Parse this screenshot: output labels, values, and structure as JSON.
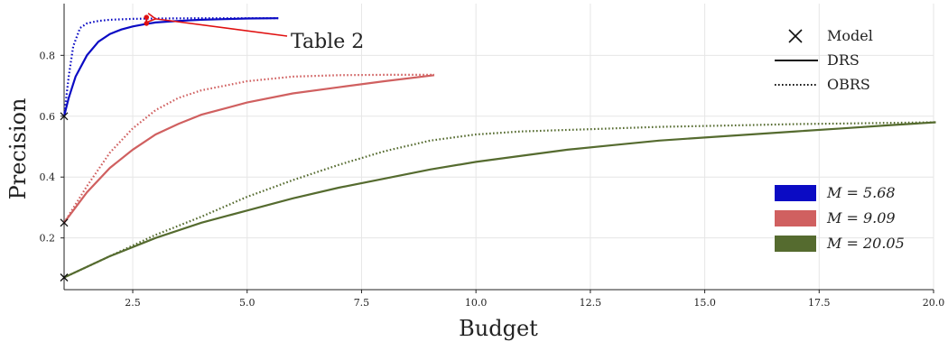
{
  "chart_data": {
    "type": "line",
    "xlabel": "Budget",
    "ylabel": "Precision",
    "xlim": [
      1.0,
      20.0
    ],
    "ylim": [
      0.03,
      0.97
    ],
    "x_ticks": [
      2.5,
      5.0,
      7.5,
      10.0,
      12.5,
      15.0,
      17.5,
      20.0
    ],
    "x_tick_labels": [
      "2.5",
      "5.0",
      "7.5",
      "10.0",
      "12.5",
      "15.0",
      "17.5",
      "20.0"
    ],
    "y_ticks": [
      0.2,
      0.4,
      0.6,
      0.8
    ],
    "y_tick_labels": [
      "0.2",
      "0.4",
      "0.6",
      "0.8"
    ],
    "grid": true,
    "style_legend": {
      "placement": "top-right",
      "entries": [
        {
          "label": "Model",
          "marker": "x"
        },
        {
          "label": "DRS",
          "linestyle": "solid"
        },
        {
          "label": "OBRS",
          "linestyle": "dotted"
        }
      ]
    },
    "color_legend": {
      "placement": "right",
      "entries": [
        {
          "label": "M = 5.68",
          "color": "#0b0bc4"
        },
        {
          "label": "M = 9.09",
          "color": "#d06060"
        },
        {
          "label": "M = 20.05",
          "color": "#556b2f"
        }
      ]
    },
    "groups": [
      {
        "color": "#0b0bc4",
        "model_point": [
          1.0,
          0.6
        ],
        "DRS": {
          "x": [
            1.0,
            1.1,
            1.25,
            1.5,
            1.75,
            2.0,
            2.25,
            2.5,
            2.75,
            3.0,
            3.5,
            4.0,
            4.5,
            5.0,
            5.68
          ],
          "y": [
            0.6,
            0.66,
            0.73,
            0.8,
            0.845,
            0.87,
            0.885,
            0.895,
            0.902,
            0.908,
            0.913,
            0.917,
            0.919,
            0.921,
            0.922
          ]
        },
        "OBRS": {
          "x": [
            1.0,
            1.1,
            1.2,
            1.35,
            1.5,
            1.75,
            2.0,
            2.5,
            3.0,
            4.0,
            5.0,
            5.68
          ],
          "y": [
            0.6,
            0.73,
            0.83,
            0.89,
            0.905,
            0.913,
            0.917,
            0.92,
            0.921,
            0.922,
            0.922,
            0.922
          ]
        }
      },
      {
        "color": "#d06060",
        "model_point": [
          1.0,
          0.25
        ],
        "DRS": {
          "x": [
            1.0,
            1.5,
            2.0,
            2.5,
            3.0,
            3.5,
            4.0,
            5.0,
            6.0,
            7.0,
            8.0,
            9.09
          ],
          "y": [
            0.25,
            0.35,
            0.43,
            0.49,
            0.54,
            0.575,
            0.605,
            0.645,
            0.675,
            0.695,
            0.715,
            0.735
          ]
        },
        "OBRS": {
          "x": [
            1.0,
            1.5,
            2.0,
            2.5,
            3.0,
            3.5,
            4.0,
            5.0,
            6.0,
            7.0,
            8.0,
            9.09
          ],
          "y": [
            0.25,
            0.37,
            0.48,
            0.56,
            0.62,
            0.66,
            0.685,
            0.715,
            0.73,
            0.735,
            0.736,
            0.736
          ]
        }
      },
      {
        "color": "#556b2f",
        "model_point": [
          1.0,
          0.07
        ],
        "DRS": {
          "x": [
            1.0,
            2.0,
            3.0,
            4.0,
            5.0,
            6.0,
            7.0,
            8.0,
            9.0,
            10.0,
            11.0,
            12.0,
            13.0,
            14.0,
            15.0,
            16.0,
            17.0,
            18.0,
            19.0,
            20.05
          ],
          "y": [
            0.07,
            0.14,
            0.2,
            0.25,
            0.29,
            0.33,
            0.365,
            0.395,
            0.425,
            0.45,
            0.47,
            0.49,
            0.505,
            0.52,
            0.53,
            0.54,
            0.55,
            0.56,
            0.57,
            0.58
          ]
        },
        "OBRS": {
          "x": [
            1.0,
            2.0,
            3.0,
            4.0,
            5.0,
            6.0,
            7.0,
            8.0,
            9.0,
            10.0,
            11.0,
            12.0,
            13.0,
            14.0,
            15.0,
            16.0,
            17.0,
            18.0,
            19.0,
            20.05
          ],
          "y": [
            0.07,
            0.14,
            0.21,
            0.27,
            0.335,
            0.39,
            0.44,
            0.485,
            0.52,
            0.54,
            0.55,
            0.555,
            0.56,
            0.565,
            0.568,
            0.571,
            0.574,
            0.576,
            0.578,
            0.58
          ]
        }
      }
    ],
    "annotation": {
      "text": "Table 2",
      "color": "#e01010",
      "points": [
        [
          2.8,
          0.905
        ],
        [
          2.8,
          0.925
        ]
      ],
      "arrow_target": [
        3.0,
        0.92
      ]
    }
  }
}
